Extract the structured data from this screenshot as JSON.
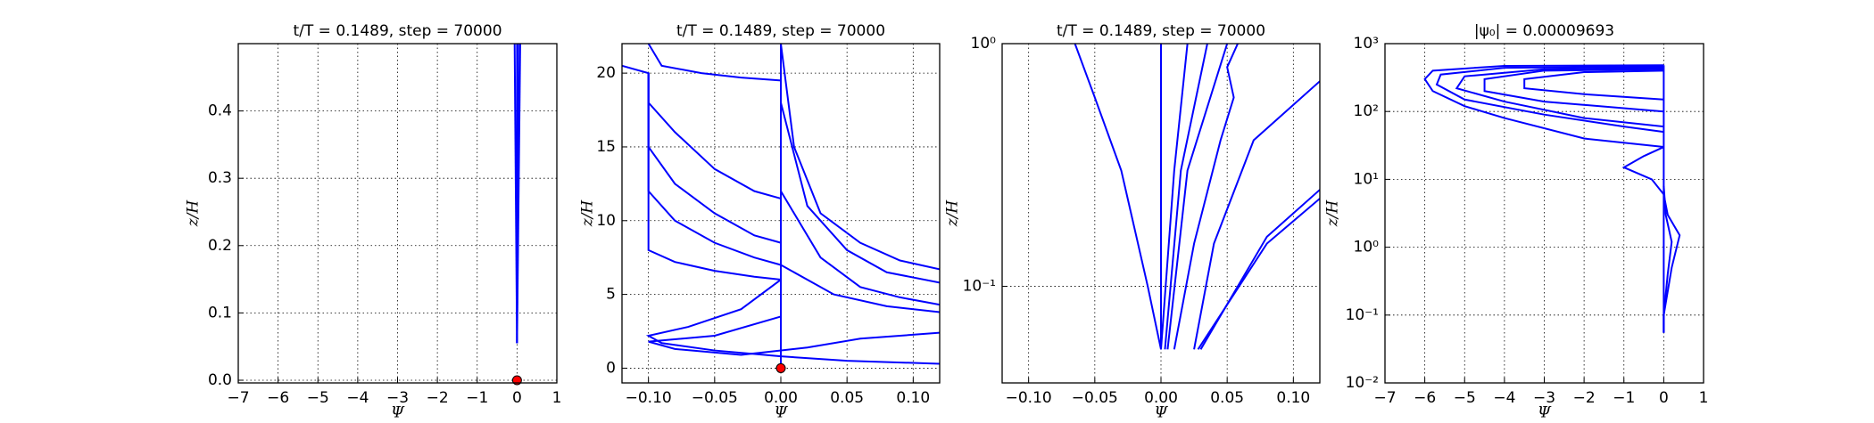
{
  "chart_data": [
    {
      "type": "line",
      "title": "t/T = 0.1489, step = 70000",
      "xlabel": "Ψ",
      "ylabel": "z/H",
      "xlim": [
        -7,
        1
      ],
      "ylim": [
        -0.004,
        0.5
      ],
      "xticks": [
        {
          "value": -7,
          "label": "−7"
        },
        {
          "value": -6,
          "label": "−6"
        },
        {
          "value": -5,
          "label": "−5"
        },
        {
          "value": -4,
          "label": "−4"
        },
        {
          "value": -3,
          "label": "−3"
        },
        {
          "value": -2,
          "label": "−2"
        },
        {
          "value": -1,
          "label": "−1"
        },
        0,
        1
      ],
      "yticks": [
        {
          "value": 0,
          "label": "0.0"
        },
        0.1,
        0.2,
        0.3,
        0.4
      ],
      "grid": true,
      "color": "#0000ff",
      "series": [
        {
          "x": [
            0,
            0
          ],
          "values": [
            0.055,
            0.5
          ]
        },
        {
          "x": [
            0,
            -0.06
          ],
          "values": [
            0.055,
            0.5
          ]
        },
        {
          "x": [
            0,
            0.08
          ],
          "values": [
            0.055,
            0.5
          ]
        },
        {
          "x": [
            0,
            0.03
          ],
          "values": [
            0.055,
            0.5
          ]
        }
      ],
      "points": {
        "x": [
          0
        ],
        "values": [
          0
        ],
        "color": "#ff0000"
      }
    },
    {
      "type": "line",
      "title": "t/T = 0.1489, step = 70000",
      "xlabel": "Ψ",
      "ylabel": "z/H",
      "xlim": [
        -0.12,
        0.12
      ],
      "ylim": [
        -1,
        22
      ],
      "xticks": [
        {
          "value": -0.1,
          "label": "−0.10"
        },
        {
          "value": -0.05,
          "label": "−0.05"
        },
        {
          "value": 0,
          "label": "0.00"
        },
        {
          "value": 0.05,
          "label": "0.05"
        },
        {
          "value": 0.1,
          "label": "0.10"
        }
      ],
      "yticks": [
        0,
        5,
        10,
        15,
        20
      ],
      "grid": true,
      "color": "#0000ff",
      "series": [
        {
          "x": [
            -0.12,
            -0.1,
            -0.1,
            -0.08,
            -0.05,
            -0.02,
            0
          ],
          "values": [
            20.5,
            20,
            18,
            16,
            13.5,
            12,
            11.5
          ]
        },
        {
          "x": [
            -0.1,
            -0.1,
            -0.08,
            -0.05,
            -0.02,
            0
          ],
          "values": [
            20,
            15,
            12.5,
            10.5,
            9,
            8.5
          ]
        },
        {
          "x": [
            -0.1,
            -0.1,
            -0.08,
            -0.05,
            -0.02,
            0
          ],
          "values": [
            20,
            12,
            10,
            8.5,
            7.5,
            7
          ]
        },
        {
          "x": [
            -0.1,
            -0.1,
            -0.08,
            -0.05,
            -0.02,
            0
          ],
          "values": [
            20,
            8,
            7.2,
            6.6,
            6.2,
            6
          ]
        },
        {
          "x": [
            -0.1,
            -0.09,
            -0.06,
            -0.03,
            0
          ],
          "values": [
            22,
            20.5,
            20,
            19.7,
            19.5
          ]
        },
        {
          "x": [
            0,
            0.01,
            0.03,
            0.06,
            0.09,
            0.12
          ],
          "values": [
            22,
            15,
            10.5,
            8.5,
            7.3,
            6.7
          ]
        },
        {
          "x": [
            0,
            0.02,
            0.05,
            0.08,
            0.12
          ],
          "values": [
            18,
            11,
            8,
            6.5,
            5.8
          ]
        },
        {
          "x": [
            0,
            0.03,
            0.06,
            0.09,
            0.12
          ],
          "values": [
            12,
            7.5,
            5.5,
            4.8,
            4.3
          ]
        },
        {
          "x": [
            0,
            0.04,
            0.08,
            0.12
          ],
          "values": [
            7,
            5,
            4.2,
            3.8
          ]
        },
        {
          "x": [
            0,
            -0.03,
            -0.07,
            -0.1,
            -0.09,
            -0.05,
            0,
            0.05,
            0.12
          ],
          "values": [
            6,
            4,
            2.8,
            2.2,
            1.7,
            1.2,
            0.8,
            0.5,
            0.3
          ]
        },
        {
          "x": [
            0,
            -0.05,
            -0.1,
            -0.08,
            -0.03,
            0.02,
            0.06,
            0.12
          ],
          "values": [
            3.5,
            2.2,
            1.8,
            1.3,
            0.9,
            1.4,
            2,
            2.4
          ]
        },
        {
          "x": [
            0,
            0,
            0
          ],
          "values": [
            0,
            10,
            22
          ]
        }
      ],
      "points": {
        "x": [
          0
        ],
        "values": [
          0
        ],
        "color": "#ff0000"
      }
    },
    {
      "type": "line",
      "title": "t/T = 0.1489, step = 70000",
      "xlabel": "Ψ",
      "ylabel": "z/H",
      "xlim": [
        -0.12,
        0.12
      ],
      "ylim": [
        0.04,
        1
      ],
      "yscale": "log",
      "xticks": [
        {
          "value": -0.1,
          "label": "−0.10"
        },
        {
          "value": -0.05,
          "label": "−0.05"
        },
        {
          "value": 0,
          "label": "0.00"
        },
        {
          "value": 0.05,
          "label": "0.05"
        },
        {
          "value": 0.1,
          "label": "0.10"
        }
      ],
      "yticks": [
        {
          "value": 0.1,
          "label": "10⁻¹"
        },
        {
          "value": 1,
          "label": "10⁰"
        }
      ],
      "grid": true,
      "color": "#0000ff",
      "series": [
        {
          "x": [
            0,
            0
          ],
          "values": [
            0.055,
            1
          ]
        },
        {
          "x": [
            0,
            0.01,
            0.02
          ],
          "values": [
            0.055,
            0.3,
            1
          ]
        },
        {
          "x": [
            0.003,
            0.015,
            0.035
          ],
          "values": [
            0.055,
            0.3,
            1
          ]
        },
        {
          "x": [
            0.005,
            0.02,
            0.05
          ],
          "values": [
            0.055,
            0.3,
            1
          ]
        },
        {
          "x": [
            0,
            -0.01,
            -0.03,
            -0.05,
            -0.065
          ],
          "values": [
            0.055,
            0.1,
            0.3,
            0.6,
            1
          ]
        },
        {
          "x": [
            0.01,
            0.025,
            0.045,
            0.055,
            0.05,
            0.058
          ],
          "values": [
            0.055,
            0.15,
            0.4,
            0.6,
            0.8,
            1
          ]
        },
        {
          "x": [
            0.025,
            0.04,
            0.07,
            0.12
          ],
          "values": [
            0.055,
            0.15,
            0.4,
            0.7
          ]
        },
        {
          "x": [
            0.03,
            0.08,
            0.12
          ],
          "values": [
            0.055,
            0.16,
            0.25
          ]
        },
        {
          "x": [
            0.028,
            0.08,
            0.12
          ],
          "values": [
            0.055,
            0.15,
            0.23
          ]
        }
      ]
    },
    {
      "type": "line",
      "title": "|ψ₀| = 0.00009693",
      "xlabel": "Ψ",
      "ylabel": "z/H",
      "xlim": [
        -7,
        1
      ],
      "ylim": [
        0.01,
        1000
      ],
      "yscale": "log",
      "xticks": [
        {
          "value": -7,
          "label": "−7"
        },
        {
          "value": -6,
          "label": "−6"
        },
        {
          "value": -5,
          "label": "−5"
        },
        {
          "value": -4,
          "label": "−4"
        },
        {
          "value": -3,
          "label": "−3"
        },
        {
          "value": -2,
          "label": "−2"
        },
        {
          "value": -1,
          "label": "−1"
        },
        0,
        1
      ],
      "yticks": [
        {
          "value": 0.01,
          "label": "10⁻²"
        },
        {
          "value": 0.1,
          "label": "10⁻¹"
        },
        {
          "value": 1,
          "label": "10⁰"
        },
        {
          "value": 10,
          "label": "10¹"
        },
        {
          "value": 100,
          "label": "10²"
        },
        {
          "value": 1000,
          "label": "10³"
        }
      ],
      "grid": true,
      "color": "#0000ff",
      "series": [
        {
          "x": [
            0,
            -4,
            -5.8,
            -6,
            -5.8,
            -5,
            -4,
            -2,
            0
          ],
          "values": [
            480,
            470,
            400,
            300,
            200,
            120,
            80,
            40,
            30
          ]
        },
        {
          "x": [
            0,
            -4,
            -5.6,
            -5.7,
            -5,
            -3,
            -1,
            0
          ],
          "values": [
            460,
            440,
            350,
            250,
            150,
            90,
            60,
            50
          ]
        },
        {
          "x": [
            0,
            -3,
            -5,
            -5.2,
            -4,
            -2,
            0
          ],
          "values": [
            440,
            420,
            330,
            220,
            140,
            80,
            60
          ]
        },
        {
          "x": [
            0,
            -3,
            -4.5,
            -4.5,
            -3,
            0
          ],
          "values": [
            420,
            400,
            300,
            200,
            140,
            100
          ]
        },
        {
          "x": [
            0,
            -2,
            -3.5,
            -3.5,
            -2,
            0
          ],
          "values": [
            400,
            380,
            300,
            220,
            180,
            150
          ]
        },
        {
          "x": [
            0,
            -0.5,
            -1,
            -0.3,
            0,
            0.1,
            0.4,
            0.2,
            0,
            0
          ],
          "values": [
            30,
            22,
            15,
            10,
            6,
            3,
            1.5,
            0.5,
            0.1,
            0.055
          ]
        },
        {
          "x": [
            0,
            0.05,
            0.2,
            0.1,
            0,
            0
          ],
          "values": [
            8,
            3,
            1.2,
            0.4,
            0.1,
            0.055
          ]
        },
        {
          "x": [
            0,
            0
          ],
          "values": [
            0.055,
            480
          ]
        }
      ]
    }
  ]
}
